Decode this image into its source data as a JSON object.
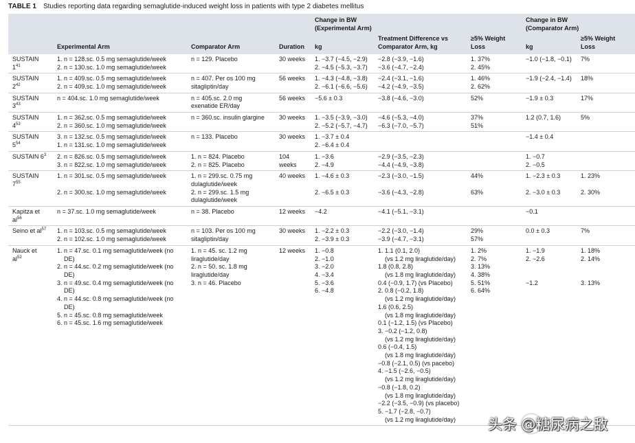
{
  "caption": {
    "label": "TABLE 1",
    "text": "Studies reporting data regarding semaglutide-induced weight loss in patients with type 2 diabetes mellitus"
  },
  "header": {
    "group_experimental": "Change in BW\n(Experimental Arm)",
    "group_comparator": "Change in BW\n(Comparator Arm)",
    "col_experimental_arm": "Experimental Arm",
    "col_comparator_arm": "Comparator Arm",
    "col_duration": "Duration",
    "col_kg": "kg",
    "col_treatment_diff": "Treatment Difference vs\nComparator Arm, kg",
    "col_weight_loss": "≥5% Weight\nLoss",
    "col_comp_kg": "kg",
    "col_comp_weight_loss": "≥5% Weight\nLoss"
  },
  "rows": [
    {
      "study": "SUSTAIN",
      "study_sup_line": "1",
      "study_sup": "41",
      "experimental": "1. n = 128.sc. 0.5 mg semaglutide/week\n2. n = 130.sc. 1.0 mg semaglutide/week",
      "comparator": "n = 129. Placebo",
      "duration": "30 weeks",
      "kg": "1. −3.7 (−4.5, −2.9)\n2. −4.5 (−5.3, −3.7)",
      "diff": "−2.8 (−3.9, −1.6)\n−3.6 (−4.7, −2.4)",
      "loss": "1. 37%\n2. 45%",
      "comp_kg": "−1.0 (−1.8, −0.1)",
      "comp_loss": "7%"
    },
    {
      "study": "SUSTAIN",
      "study_sup_line": "2",
      "study_sup": "42",
      "experimental": "1. n = 409.sc. 0.5 mg semaglutide/week\n2. n = 409.sc. 1.0 mg semaglutide/week",
      "comparator": "n = 407. Per os 100 mg\nsitagliptin/day",
      "duration": "56 weeks",
      "kg": "1. −4.3 (−4.8, −3.8)\n2. −6.1 (−6.6, −5.6)",
      "diff": "−2.4 (−3.1, −1.6)\n−4.2 (−4.9, −3.5)",
      "loss": "1. 46%\n2. 62%",
      "comp_kg": "−1.9 (−2.4, −1.4)",
      "comp_loss": "18%"
    },
    {
      "study": "SUSTAIN",
      "study_sup_line": "3",
      "study_sup": "43",
      "experimental": "n = 404.sc. 1.0 mg semaglutide/week",
      "comparator": "n = 405.sc. 2.0 mg\nexenatide ER/day",
      "duration": "56 weeks",
      "kg": "−5.6 ± 0.3",
      "diff": "−3.8 (−4.6, −3.0)",
      "loss": "52%",
      "comp_kg": "−1.9 ± 0.3",
      "comp_loss": "17%"
    },
    {
      "study": "SUSTAIN",
      "study_sup_line": "4",
      "study_sup": "53",
      "experimental": "1. n = 362.sc. 0.5 mg semaglutide/week\n2. n = 360.sc. 1.0 mg semaglutide/week",
      "comparator": "n = 360.sc. insulin glargine",
      "duration": "30 weeks",
      "kg": "1. −3.5 (−3.9, −3.0)\n2. −5.2 (−5.7, −4.7)",
      "diff": "−4.6 (−5.3, −4.0)\n−6.3 (−7.0, −5.7)",
      "loss": "37%\n51%",
      "comp_kg": "1.2 (0.7, 1.6)",
      "comp_loss": "5%"
    },
    {
      "study": "SUSTAIN",
      "study_sup_line": "5",
      "study_sup": "54",
      "experimental": "3. n = 132.sc. 0.5 mg semaglutide/week\n1. n = 131.sc. 1.0 mg semaglutide/week",
      "comparator": "n = 133. Placebo",
      "duration": "30 weeks",
      "kg": "1. −3.7 ± 0.4\n2. −6.4 ± 0.4",
      "diff": "",
      "loss": "",
      "comp_kg": "−1.4 ± 0.4",
      "comp_loss": ""
    },
    {
      "study": "SUSTAIN 6",
      "study_sup_line": "",
      "study_sup": "3",
      "experimental": "2. n = 826.sc. 0.5 mg semaglutide/week\n3. n = 822.sc. 1.0 mg semaglutide/week",
      "comparator": "1. n = 824. Placebo\n2. n = 825. Placebo",
      "duration": "104\nweeks",
      "kg": "1. −3.6\n2. −4.9",
      "diff": "−2.9 (−3.5, −2.3)\n−4.4 (−4.9, −3.8)",
      "loss": "",
      "comp_kg": "1. −0.7\n2. −0.5",
      "comp_loss": ""
    },
    {
      "study": "SUSTAIN",
      "study_sup_line": "7",
      "study_sup": "55",
      "experimental": "1. n = 301.sc. 0.5 mg semaglutide/week\n\n2. n = 300.sc. 1.0 mg semaglutide/week",
      "comparator": "1. n = 299.sc. 0.75 mg\ndulaglutide/week\n2. n = 299.sc. 1.5 mg\ndulaglutide/week",
      "duration": "40 weeks",
      "kg": "1. −4.6 ± 0.3\n\n2. −6.5 ± 0.3",
      "diff": "−2.3 (−3.0, −1.5)\n\n−3.6 (−4.3, −2.8)",
      "loss": "44%\n\n63%",
      "comp_kg": "1. −2.3 ± 0.3\n\n2. −3.0 ± 0.3",
      "comp_loss": "1. 23%\n\n2. 30%"
    },
    {
      "study": "Kapitza et",
      "study_sup_line": "al",
      "study_sup": "56",
      "experimental": "n = 37.sc. 1.0 mg semaglutide/week",
      "comparator": "n = 38. Placebo",
      "duration": "12 weeks",
      "kg": "−4.2",
      "diff": "−4.1 (−5.1, −3.1)",
      "loss": "",
      "comp_kg": "−0.1",
      "comp_loss": ""
    },
    {
      "study": "Seino et al",
      "study_sup_line": "",
      "study_sup": "57",
      "experimental": "1. n = 103.sc. 0.5 mg semaglutide/week\n2. n = 102.sc. 1.0 mg semaglutide/week",
      "comparator": "n = 103. Per os 100 mg\nsitagliptin/day",
      "duration": "30 weeks",
      "kg": "1. −2.2 ± 0.3\n2. −3.9 ± 0.3",
      "diff": "−2.2 (−3.0, −1.4)\n−3.9 (−4.7, −3.1)",
      "loss": "29%\n57%",
      "comp_kg": "0.0 ± 0.3",
      "comp_loss": "7%"
    },
    {
      "study": "Nauck et",
      "study_sup_line": "al",
      "study_sup": "52",
      "experimental": "1. n = 47.sc. 0.1 mg semaglutide/week (no\n    DE)\n2. n = 44.sc. 0.2 mg semaglutide/week (no\n    DE)\n3. n = 49.sc. 0.4 mg semaglutide/week (no\n    DE)\n4. n = 44.sc. 0.8 mg semaglutide/week (no\n    DE)\n5. n = 45.sc. 0.8 mg semaglutide/week\n6. n = 45.sc. 1.6 mg semaglutide/week",
      "comparator": "1. n = 45. sc. 1.2 mg\nliraglutide/day\n2. n = 50. sc. 1.8 mg\nliraglutide/day\n3. n = 46. Placebo",
      "duration": "12 weeks",
      "kg": "1. −0.8\n2. −1.0\n3. −2.0\n4. −3.4\n5. −3.6\n6. −4.8",
      "diff": "1. 1.1 (0.1, 2.0)\n    (vs 1.2 mg liraglutide/day)\n1.8 (0.8, 2.8)\n    (vs 1.8 mg liraglutide/day)\n0.4 (−0.9, 1.7) (vs Placebo)\n2. 0.8 (−0.2, 1.8)\n    (vs 1.2 mg liraglutide/day)\n1.6 (0.6, 2.5)\n    (vs 1.8 mg liraglutide/day)\n0.1 (−1.2, 1.5) (vs Placebo)\n3. −0.2 (−1.2, 0.8)\n    (vs 1.2 mg liraglutide/day)\n0.6 (−0.4, 1.5)\n    (vs 1.8 mg liraglutide/day)\n−0.8 (−2.1, 0.5) (vs pacebo)\n4. −1.5 (−2.6, −0.5)\n    (vs 1.2 mg liraglutide/day)\n−0.8 (−1.8, 0.2)\n    (vs 1.8 mg liraglutide/day)\n−2.2 (−3.5, −0.9) (vs placebo)\n5. −1.7 (−2.8, −0.7)\n    (vs 1.2 mg liraglutide/day)",
      "loss": "1. 2%\n2. 7%\n3. 13%\n4. 38%\n5. 51%\n6. 64%",
      "comp_kg": "1. −1.9\n2. −2.6\n\n\n−1.2",
      "comp_loss": "1. 18%\n2. 14%\n\n\n3. 13%"
    }
  ],
  "watermark": {
    "text": "头条 @糖尿病之敌",
    "icon": "wechat-icon"
  }
}
